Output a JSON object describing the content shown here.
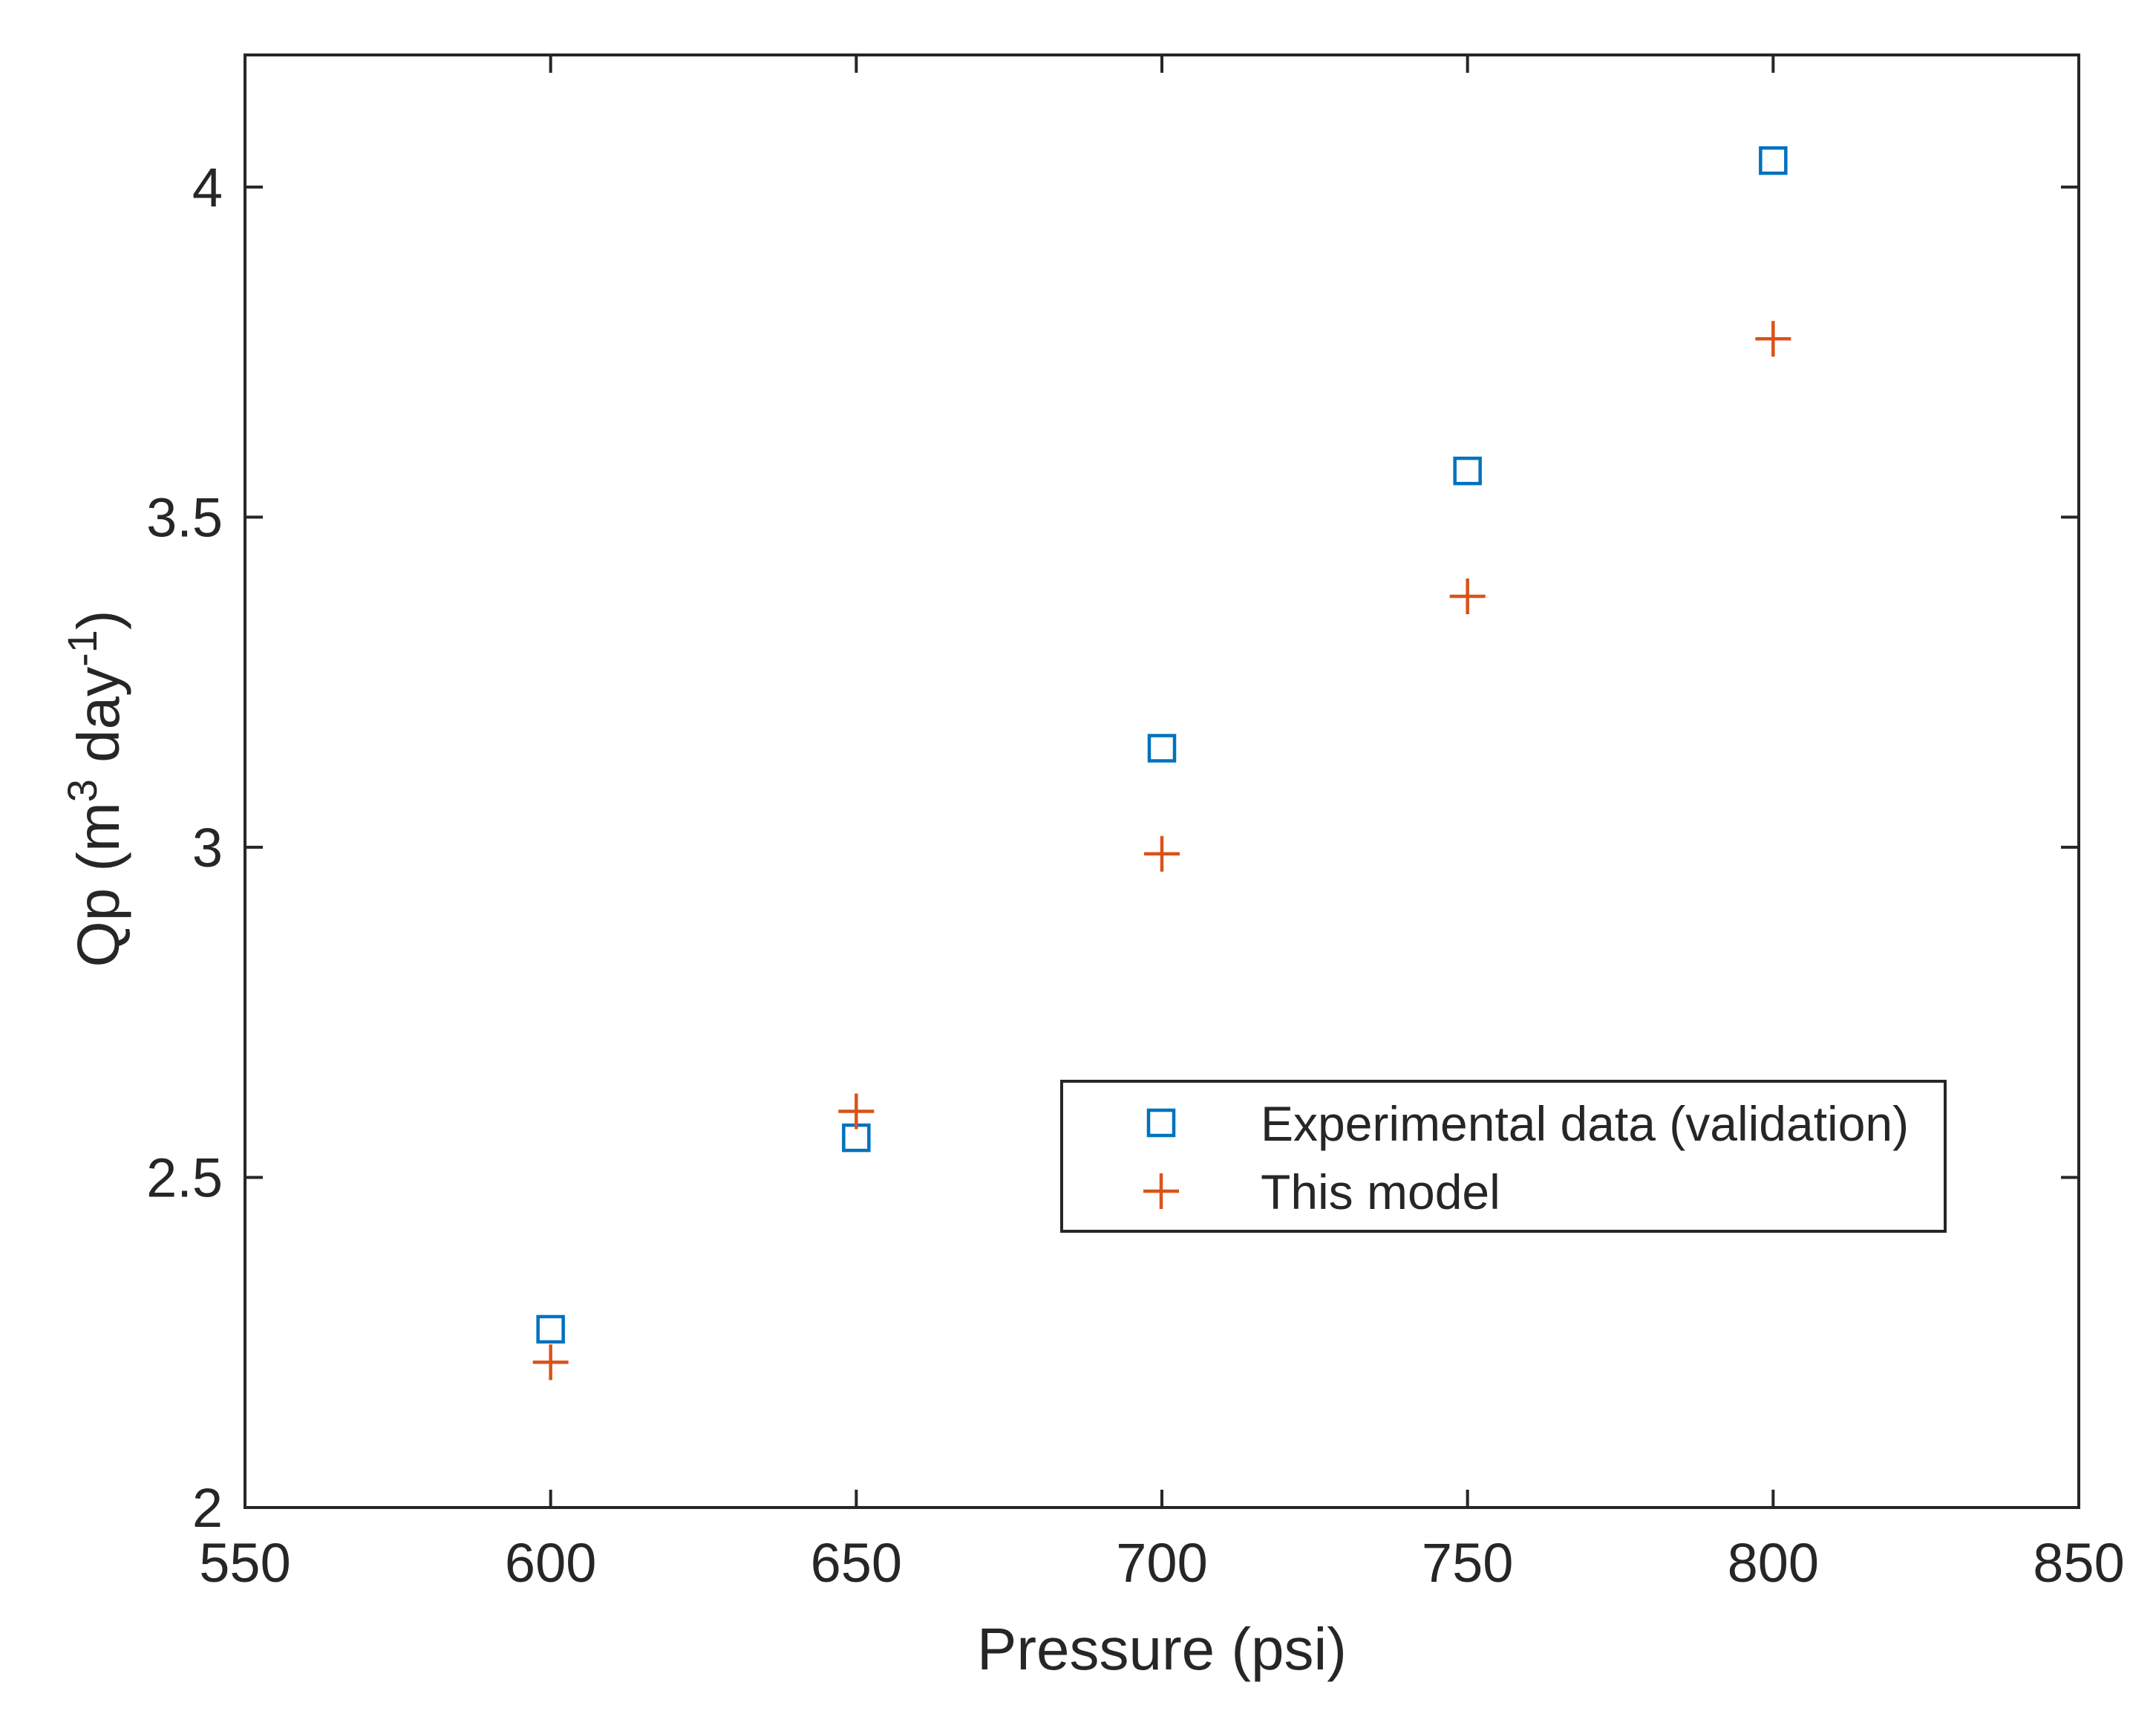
{
  "chart_data": {
    "type": "scatter",
    "title": "",
    "xlabel": "Pressure (psi)",
    "ylabel": {
      "main": "Qp (m",
      "sup1": "3",
      "mid": " day",
      "sup2": "-1",
      "end": ")"
    },
    "xlim": [
      550,
      850
    ],
    "ylim": [
      2,
      4.2
    ],
    "xticks": [
      550,
      600,
      650,
      700,
      750,
      800,
      850
    ],
    "yticks": [
      2,
      2.5,
      3,
      3.5,
      4
    ],
    "xtick_labels": [
      "550",
      "600",
      "650",
      "700",
      "750",
      "800",
      "850"
    ],
    "ytick_labels": [
      "2",
      "2.5",
      "3",
      "3.5",
      "4"
    ],
    "grid": false,
    "legend_position": "right-middle",
    "series": [
      {
        "name": "Experimental data (validation)",
        "marker": "square",
        "color": "#0072BD",
        "x": [
          600,
          650,
          700,
          750,
          800
        ],
        "y": [
          2.27,
          2.56,
          3.15,
          3.57,
          4.04
        ]
      },
      {
        "name": "This model",
        "marker": "plus",
        "color": "#D95319",
        "x": [
          600,
          650,
          700,
          750,
          800
        ],
        "y": [
          2.22,
          2.6,
          2.99,
          3.38,
          3.77
        ]
      }
    ]
  }
}
